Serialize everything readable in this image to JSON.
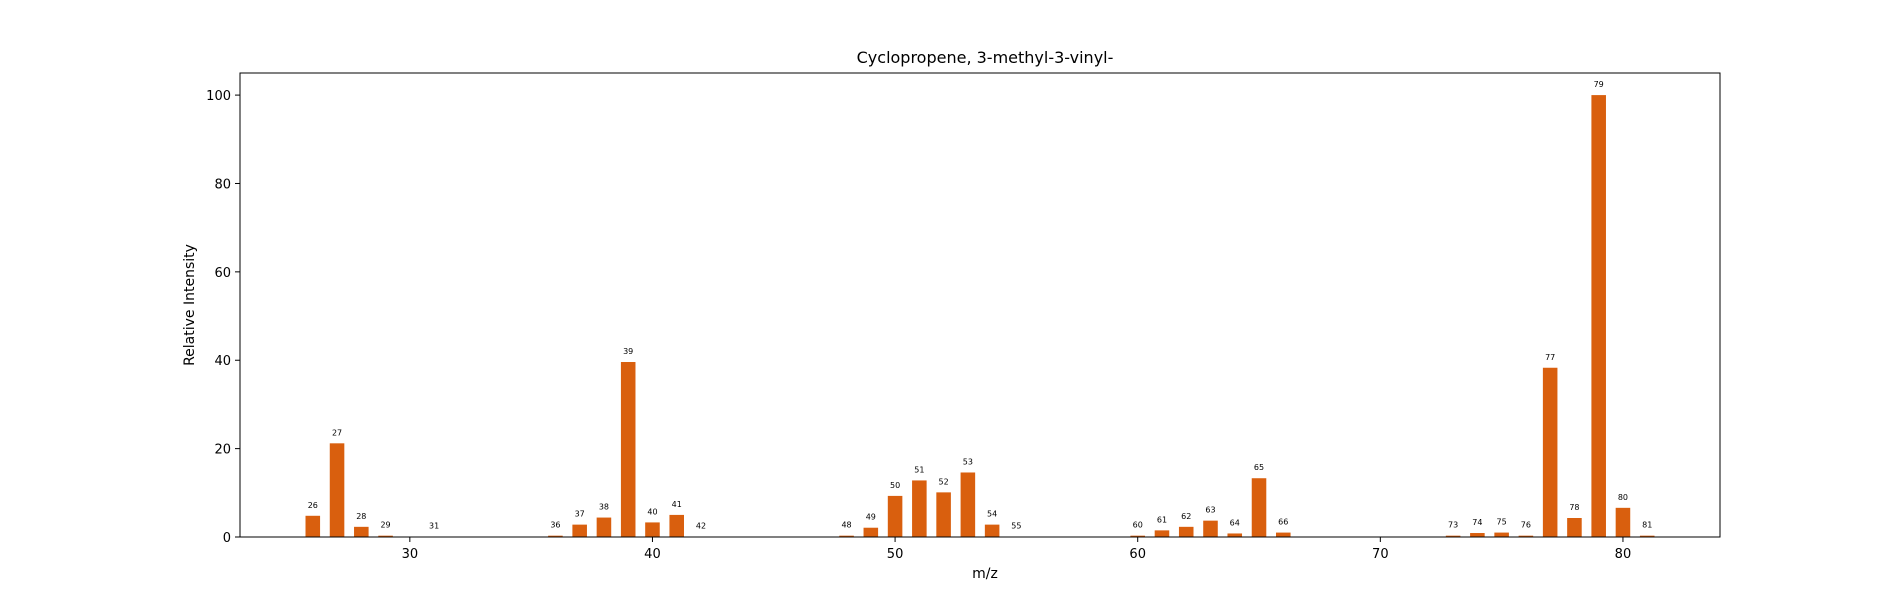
{
  "colors": {
    "bar": "#d95f0e",
    "axis": "#000000",
    "background": "#ffffff"
  },
  "chart_data": {
    "type": "bar",
    "title": "Cyclopropene, 3-methyl-3-vinyl-",
    "xlabel": "m/z",
    "ylabel": "Relative Intensity",
    "xlim": [
      23,
      84
    ],
    "ylim": [
      0,
      105
    ],
    "xticks": [
      30,
      40,
      50,
      60,
      70,
      80
    ],
    "yticks": [
      0,
      20,
      40,
      60,
      80,
      100
    ],
    "grid": false,
    "legend": "none",
    "x": [
      26,
      27,
      28,
      29,
      31,
      36,
      37,
      38,
      39,
      40,
      41,
      42,
      48,
      49,
      50,
      51,
      52,
      53,
      54,
      55,
      60,
      61,
      62,
      63,
      64,
      65,
      66,
      73,
      74,
      75,
      76,
      77,
      78,
      79,
      80,
      81
    ],
    "values": [
      4.8,
      21.2,
      2.3,
      0.3,
      0.1,
      0.3,
      2.8,
      4.4,
      39.6,
      3.3,
      5.0,
      0.1,
      0.3,
      2.1,
      9.3,
      12.8,
      10.1,
      14.6,
      2.8,
      0.1,
      0.3,
      1.5,
      2.3,
      3.7,
      0.8,
      13.3,
      1.0,
      0.3,
      0.9,
      1.0,
      0.3,
      38.3,
      4.3,
      100.0,
      6.6,
      0.3
    ],
    "labels": [
      "26",
      "27",
      "28",
      "29",
      "31",
      "36",
      "37",
      "38",
      "39",
      "40",
      "41",
      "42",
      "48",
      "49",
      "50",
      "51",
      "52",
      "53",
      "54",
      "55",
      "60",
      "61",
      "62",
      "63",
      "64",
      "65",
      "66",
      "73",
      "74",
      "75",
      "76",
      "77",
      "78",
      "79",
      "80",
      "81"
    ]
  }
}
